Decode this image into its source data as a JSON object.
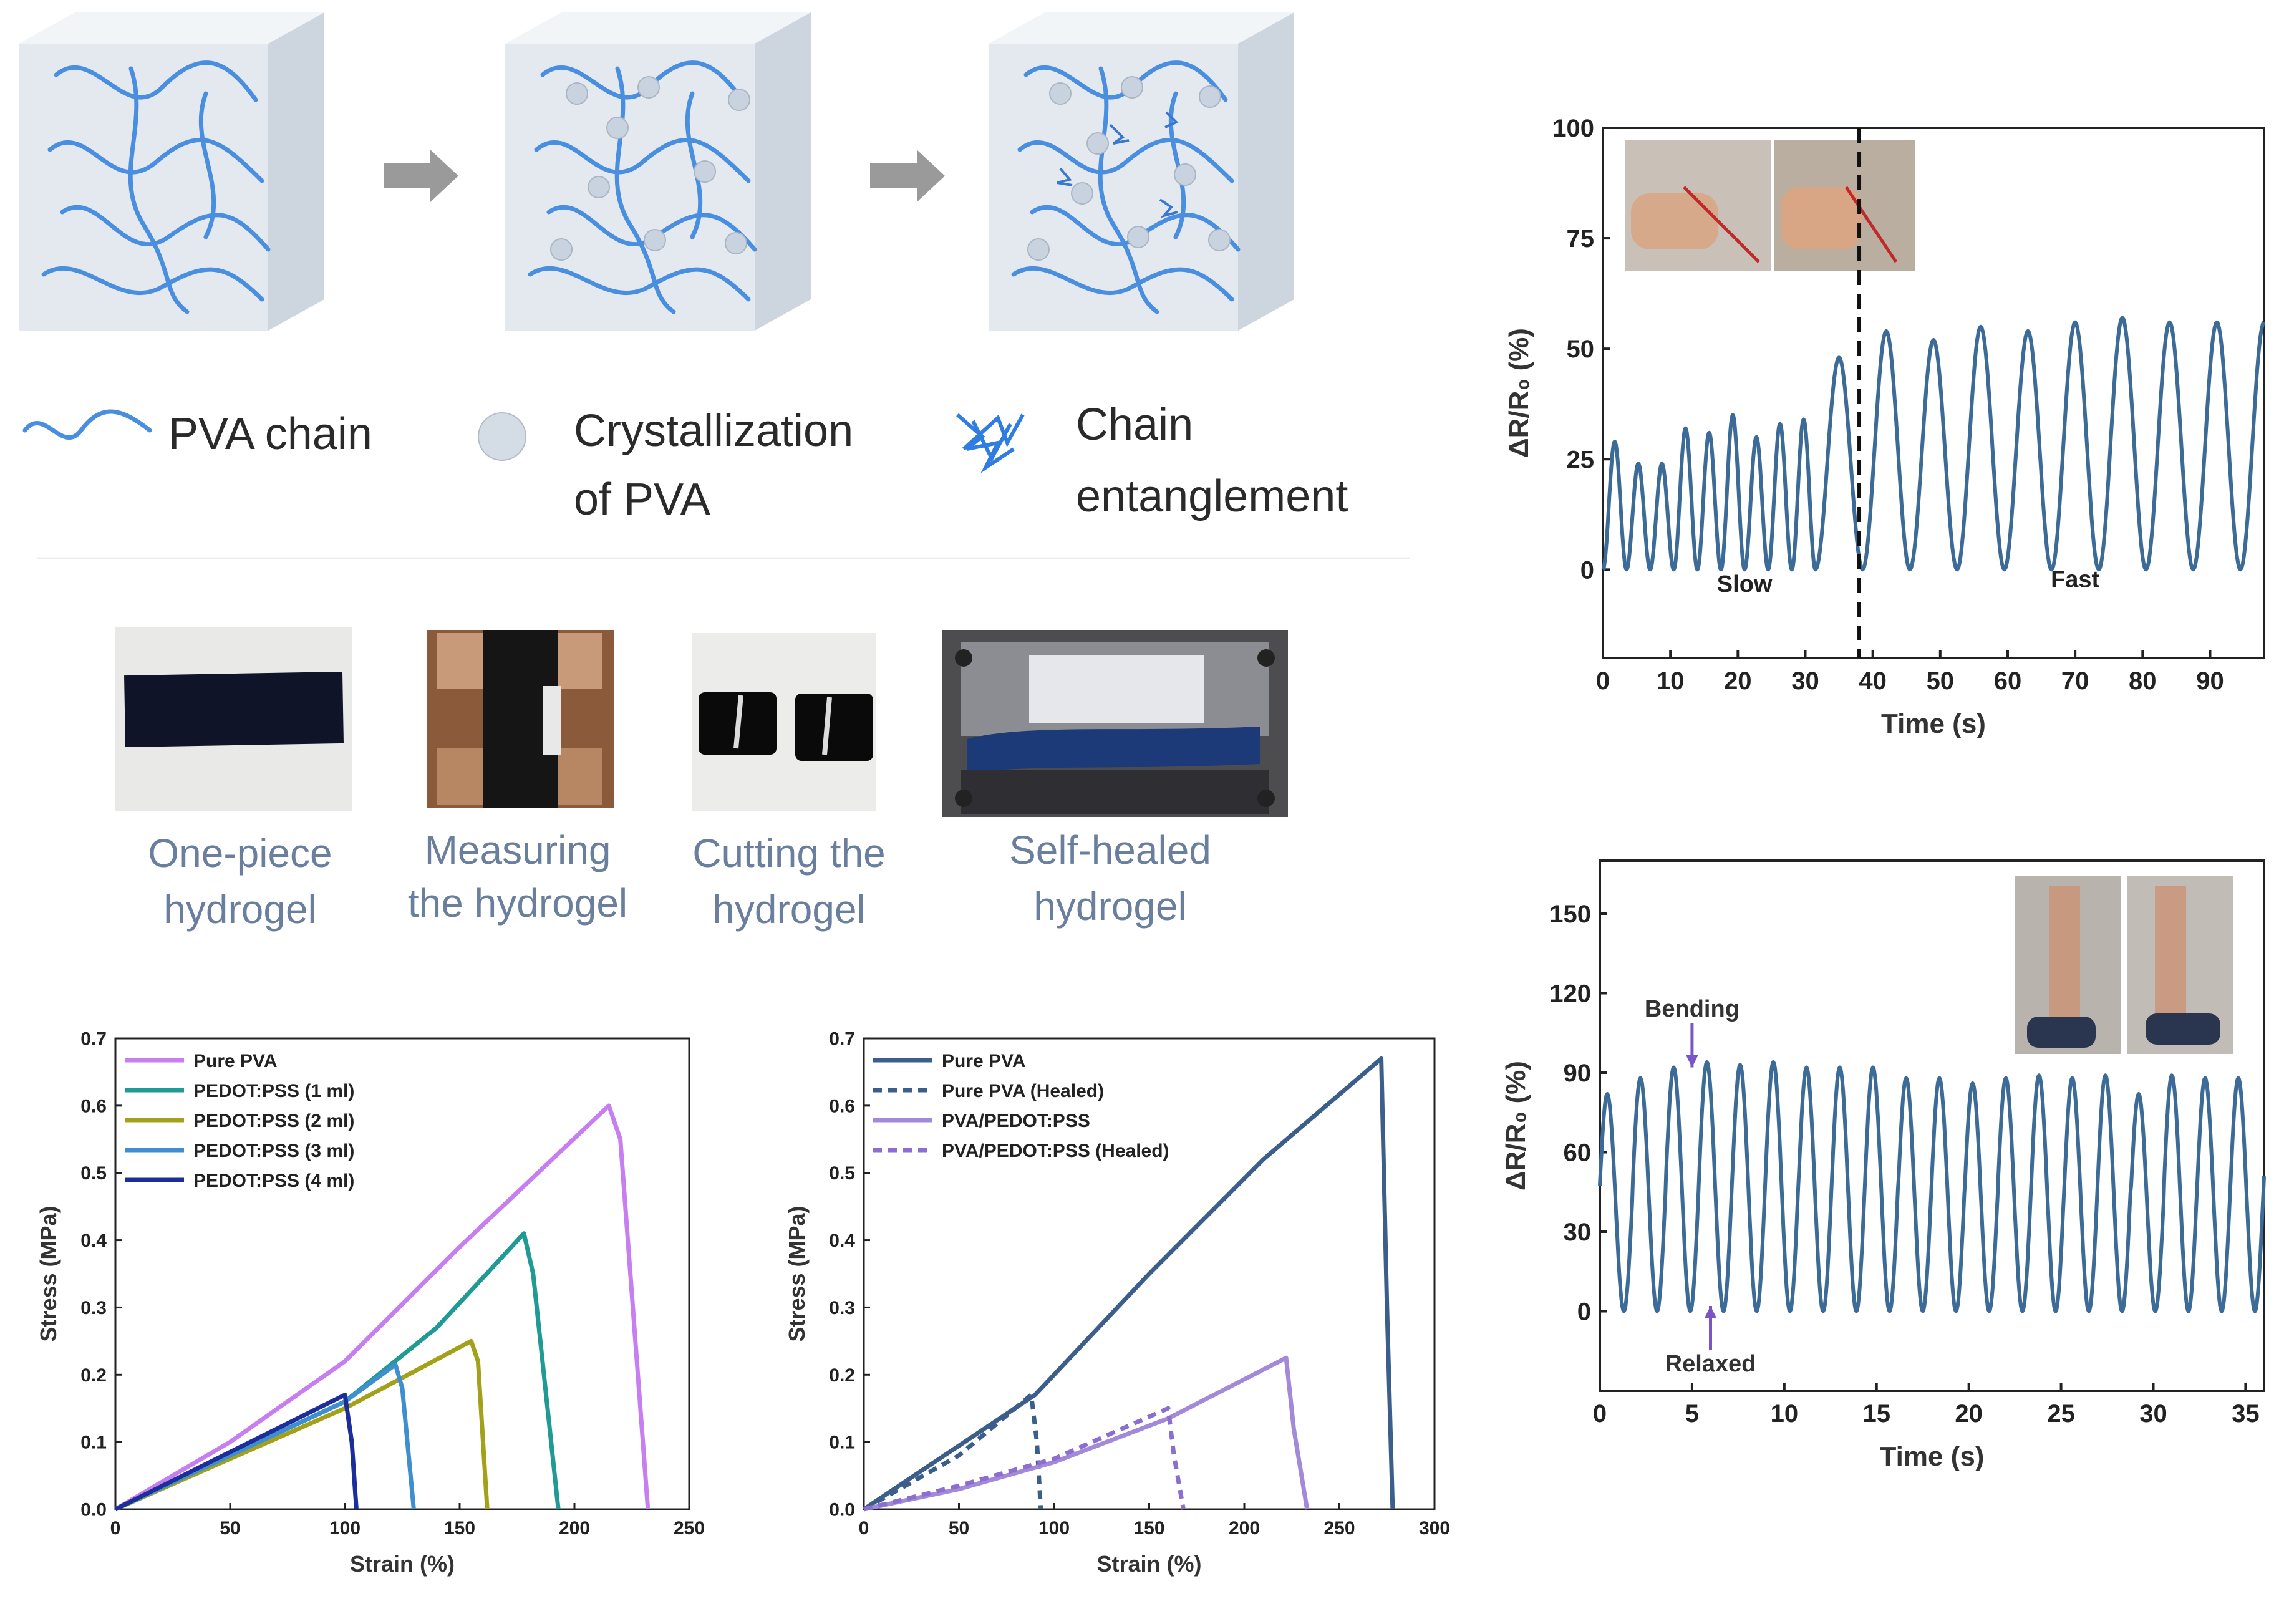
{
  "schematic": {
    "legend": {
      "pva_chain": "PVA chain",
      "crystal_line1": "Crystallization",
      "crystal_line2": "of PVA",
      "entangle_line1": "Chain",
      "entangle_line2": "entanglement"
    },
    "colors": {
      "chain": "#4a8ee0",
      "crystal": "#c9d3df",
      "cube": "#e3e8ee",
      "arrow": "#9a9a9a"
    }
  },
  "photos": [
    {
      "line1": "One-piece",
      "line2": "hydrogel"
    },
    {
      "line1": "Measuring",
      "line2": "the hydrogel"
    },
    {
      "line1": "Cutting the",
      "line2": "hydrogel"
    },
    {
      "line1": "Self-healed",
      "line2": "hydrogel"
    }
  ],
  "chart_data": [
    {
      "id": "stress-strain-concentration",
      "type": "line",
      "xlabel": "Strain (%)",
      "ylabel": "Stress (MPa)",
      "xlim": [
        0,
        250
      ],
      "ylim": [
        0,
        0.7
      ],
      "xticks": [
        0,
        50,
        100,
        150,
        200,
        250
      ],
      "yticks": [
        0.0,
        0.1,
        0.2,
        0.3,
        0.4,
        0.5,
        0.6,
        0.7
      ],
      "legend_position": "top-left",
      "series": [
        {
          "name": "Pure PVA",
          "color": "#c77ef0",
          "dash": false,
          "points": [
            [
              0,
              0
            ],
            [
              50,
              0.1
            ],
            [
              100,
              0.22
            ],
            [
              150,
              0.39
            ],
            [
              215,
              0.6
            ],
            [
              220,
              0.55
            ],
            [
              232,
              0
            ]
          ]
        },
        {
          "name": "PEDOT:PSS (1 ml)",
          "color": "#1f9a94",
          "dash": false,
          "points": [
            [
              0,
              0
            ],
            [
              50,
              0.08
            ],
            [
              100,
              0.16
            ],
            [
              140,
              0.27
            ],
            [
              178,
              0.41
            ],
            [
              182,
              0.35
            ],
            [
              193,
              0
            ]
          ]
        },
        {
          "name": "PEDOT:PSS (2 ml)",
          "color": "#a3a11a",
          "dash": false,
          "points": [
            [
              0,
              0
            ],
            [
              50,
              0.075
            ],
            [
              100,
              0.15
            ],
            [
              155,
              0.25
            ],
            [
              158,
              0.22
            ],
            [
              162,
              0
            ]
          ]
        },
        {
          "name": "PEDOT:PSS (3 ml)",
          "color": "#3f8fd0",
          "dash": false,
          "points": [
            [
              0,
              0
            ],
            [
              50,
              0.08
            ],
            [
              100,
              0.16
            ],
            [
              122,
              0.215
            ],
            [
              125,
              0.18
            ],
            [
              130,
              0
            ]
          ]
        },
        {
          "name": "PEDOT:PSS (4 ml)",
          "color": "#1c2e9c",
          "dash": false,
          "points": [
            [
              0,
              0
            ],
            [
              50,
              0.085
            ],
            [
              100,
              0.17
            ],
            [
              103,
              0.1
            ],
            [
              105,
              0
            ]
          ]
        }
      ]
    },
    {
      "id": "stress-strain-healed",
      "type": "line",
      "xlabel": "Strain (%)",
      "ylabel": "Stress (MPa)",
      "xlim": [
        0,
        300
      ],
      "ylim": [
        0,
        0.7
      ],
      "xticks": [
        0,
        50,
        100,
        150,
        200,
        250,
        300
      ],
      "yticks": [
        0.0,
        0.1,
        0.2,
        0.3,
        0.4,
        0.5,
        0.6,
        0.7
      ],
      "legend_position": "top-left",
      "series": [
        {
          "name": "Pure PVA",
          "color": "#3b5f8a",
          "dash": false,
          "points": [
            [
              0,
              0
            ],
            [
              90,
              0.17
            ],
            [
              150,
              0.35
            ],
            [
              210,
              0.52
            ],
            [
              272,
              0.67
            ],
            [
              275,
              0.3
            ],
            [
              278,
              0
            ]
          ]
        },
        {
          "name": "Pure PVA (Healed)",
          "color": "#3b5f8a",
          "dash": true,
          "points": [
            [
              0,
              0
            ],
            [
              50,
              0.08
            ],
            [
              88,
              0.17
            ],
            [
              91,
              0.1
            ],
            [
              93,
              0
            ]
          ]
        },
        {
          "name": "PVA/PEDOT:PSS",
          "color": "#a28ad8",
          "dash": false,
          "points": [
            [
              0,
              0
            ],
            [
              50,
              0.03
            ],
            [
              100,
              0.07
            ],
            [
              160,
              0.135
            ],
            [
              222,
              0.225
            ],
            [
              226,
              0.12
            ],
            [
              233,
              0
            ]
          ]
        },
        {
          "name": "PVA/PEDOT:PSS (Healed)",
          "color": "#8a6fd0",
          "dash": true,
          "points": [
            [
              0,
              0
            ],
            [
              50,
              0.035
            ],
            [
              100,
              0.075
            ],
            [
              160,
              0.15
            ],
            [
              163,
              0.08
            ],
            [
              168,
              0
            ]
          ]
        }
      ]
    },
    {
      "id": "finger-bending-response",
      "type": "line",
      "xlabel": "Time (s)",
      "ylabel": "ΔR/R₀ (%)",
      "xlim": [
        0,
        98
      ],
      "ylim": [
        -20,
        100
      ],
      "xticks": [
        0,
        10,
        20,
        30,
        40,
        50,
        60,
        70,
        80,
        90
      ],
      "yticks": [
        0,
        25,
        50,
        75,
        100
      ],
      "divider_x": 38,
      "annotations": [
        {
          "text": "Slow",
          "x": 21,
          "y": -5
        },
        {
          "text": "Fast",
          "x": 70,
          "y": -4
        }
      ],
      "series": [
        {
          "name": "response",
          "color": "#3b6b96",
          "cycles": [
            {
              "period": 3.5,
              "peaks": [
                29,
                24,
                24,
                32,
                31,
                35,
                30,
                33,
                34
              ]
            },
            {
              "period": 7.0,
              "peaks": [
                48,
                54,
                52,
                55,
                54,
                56,
                57,
                56
              ]
            }
          ]
        }
      ]
    },
    {
      "id": "knee-bending-response",
      "type": "line",
      "xlabel": "Time (s)",
      "ylabel": "ΔR/R₀ (%)",
      "xlim": [
        0,
        36
      ],
      "ylim": [
        -30,
        170
      ],
      "xticks": [
        0,
        5,
        10,
        15,
        20,
        25,
        30,
        35
      ],
      "yticks": [
        0,
        30,
        60,
        90,
        120,
        150
      ],
      "annotations": [
        {
          "text": "Bending",
          "x": 5,
          "y": 110
        },
        {
          "text": "Relaxed",
          "x": 6,
          "y": -18
        }
      ],
      "series": [
        {
          "name": "response",
          "color": "#3b6b96",
          "period": 1.8,
          "peaks": [
            82,
            88,
            92,
            94,
            93,
            94,
            92,
            92,
            92,
            88,
            88,
            86,
            88,
            89,
            88,
            89,
            82,
            89,
            88,
            88
          ]
        }
      ]
    }
  ]
}
